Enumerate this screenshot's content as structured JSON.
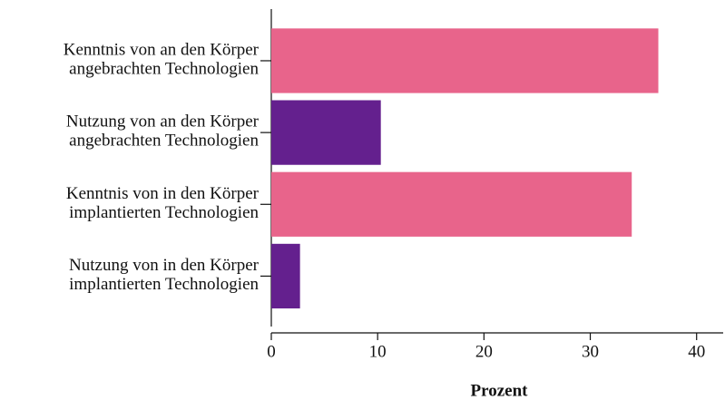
{
  "chart_data": {
    "type": "barh",
    "categories": [
      "Kenntnis von an den Körper\nangebrachten Technologien",
      "Nutzung von an den Körper\nangebrachten Technologien",
      "Kenntnis von in den Körper\nimplantierten Technologien",
      "Nutzung von in den Körper\nimplantierten Technologien"
    ],
    "values": [
      36.4,
      10.3,
      33.9,
      2.7
    ],
    "colors": [
      "#e8648b",
      "#64208e",
      "#e8648b",
      "#64208e"
    ],
    "xlabel": "Prozent",
    "xlim": [
      0,
      42.5
    ],
    "xticks": [
      0,
      10,
      20,
      30,
      40
    ]
  }
}
